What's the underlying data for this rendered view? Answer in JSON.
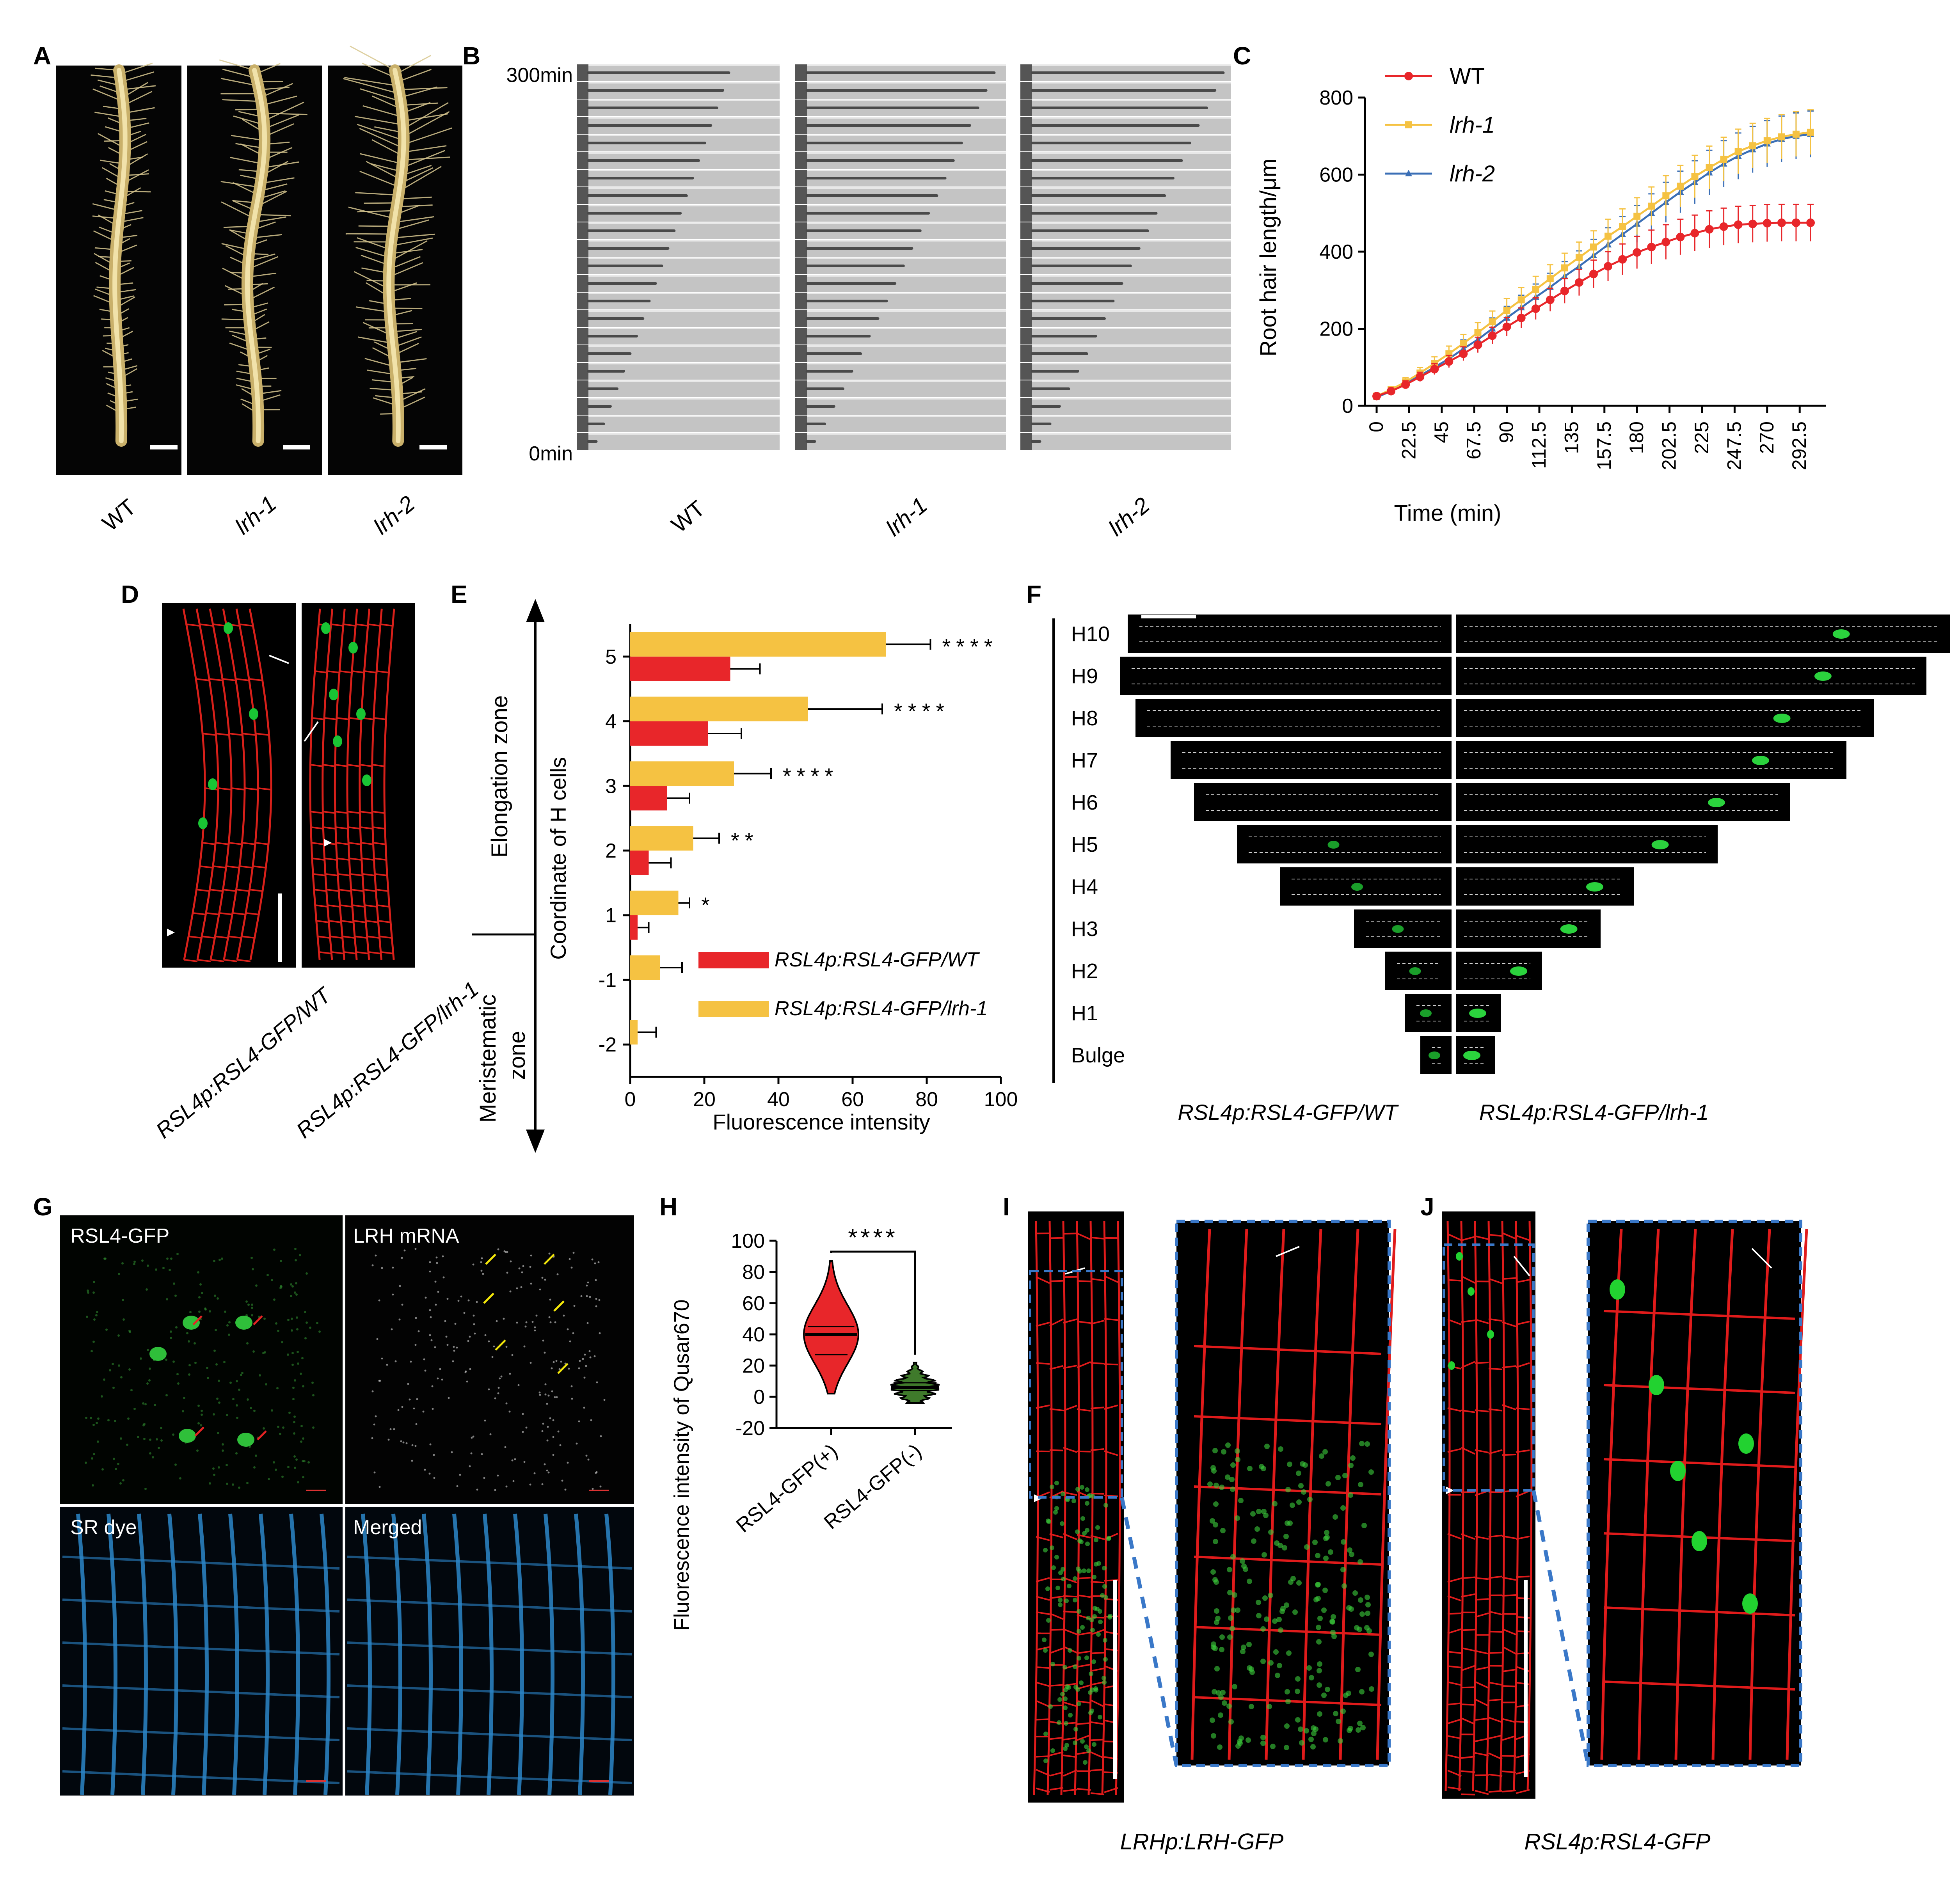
{
  "figure": {
    "panel_letters": [
      "A",
      "B",
      "C",
      "D",
      "E",
      "F",
      "G",
      "H",
      "I",
      "J"
    ]
  },
  "panel_a": {
    "genotypes": [
      "WT",
      "lrh-1",
      "lrh-2"
    ]
  },
  "panel_b": {
    "time_top": "300min",
    "time_bottom": "0min",
    "genotypes": [
      "WT",
      "lrh-1",
      "lrh-2"
    ]
  },
  "panel_d": {
    "labels": [
      "RSL4p:RSL4-GFP/WT",
      "RSL4p:RSL4-GFP/lrh-1"
    ]
  },
  "panel_e": {
    "zone_upper": "Elongation zone",
    "zone_lower": "Meristematic zone"
  },
  "panel_f": {
    "rows": [
      "H10",
      "H9",
      "H8",
      "H7",
      "H6",
      "H5",
      "H4",
      "H3",
      "H2",
      "H1",
      "Bulge"
    ],
    "labels": [
      "RSL4p:RSL4-GFP/WT",
      "RSL4p:RSL4-GFP/lrh-1"
    ]
  },
  "panel_g": {
    "quadrants": [
      "RSL4-GFP",
      "LRH mRNA",
      "SR dye",
      "Merged"
    ]
  },
  "panel_i": {
    "caption": "LRHp:LRH-GFP"
  },
  "panel_j": {
    "caption": "RSL4p:RSL4-GFP"
  },
  "chart_data": [
    {
      "panel": "C",
      "type": "line",
      "xlabel": "Time (min)",
      "ylabel": "Root hair length/μm",
      "ylim": [
        0,
        800
      ],
      "yticks": [
        0,
        200,
        400,
        600,
        800
      ],
      "xticks": [
        "0",
        "22.5",
        "45",
        "67.5",
        "90",
        "112.5",
        "135",
        "157.5",
        "180",
        "202.5",
        "225",
        "247.5",
        "270",
        "292.5"
      ],
      "x": [
        0,
        10,
        20,
        30,
        40,
        50,
        60,
        70,
        80,
        90,
        100,
        110,
        120,
        130,
        140,
        150,
        160,
        170,
        180,
        190,
        200,
        210,
        220,
        230,
        240,
        250,
        260,
        270,
        280,
        290,
        300
      ],
      "legend_position": "top-left",
      "series": [
        {
          "name": "WT",
          "color": "#e8262a",
          "marker": "circle",
          "values": [
            25,
            38,
            55,
            75,
            95,
            115,
            135,
            158,
            182,
            205,
            228,
            252,
            275,
            298,
            320,
            342,
            362,
            380,
            398,
            412,
            425,
            438,
            448,
            458,
            465,
            470,
            472,
            474,
            475,
            475,
            475
          ],
          "error": [
            5,
            8,
            10,
            12,
            14,
            16,
            18,
            20,
            22,
            24,
            26,
            28,
            30,
            32,
            34,
            36,
            38,
            40,
            42,
            44,
            45,
            46,
            47,
            48,
            48,
            48,
            48,
            48,
            48,
            48,
            48
          ]
        },
        {
          "name": "lrh-1",
          "color": "#f5c242",
          "marker": "square",
          "values": [
            25,
            42,
            62,
            85,
            110,
            135,
            162,
            190,
            218,
            248,
            275,
            302,
            330,
            358,
            385,
            412,
            440,
            465,
            492,
            518,
            545,
            570,
            595,
            618,
            640,
            660,
            675,
            688,
            698,
            705,
            710
          ],
          "error": [
            5,
            8,
            11,
            14,
            17,
            20,
            23,
            26,
            28,
            30,
            32,
            34,
            36,
            38,
            40,
            42,
            44,
            46,
            48,
            50,
            52,
            54,
            55,
            56,
            57,
            58,
            58,
            58,
            58,
            58,
            58
          ]
        },
        {
          "name": "lrh-2",
          "color": "#3b6fb6",
          "marker": "triangle",
          "values": [
            22,
            38,
            58,
            78,
            100,
            122,
            148,
            172,
            200,
            228,
            255,
            282,
            308,
            336,
            362,
            390,
            418,
            445,
            472,
            500,
            528,
            555,
            580,
            605,
            628,
            648,
            665,
            680,
            692,
            700,
            705
          ],
          "error": [
            5,
            8,
            11,
            14,
            17,
            20,
            23,
            26,
            28,
            30,
            32,
            34,
            36,
            38,
            40,
            42,
            44,
            46,
            48,
            50,
            52,
            54,
            56,
            58,
            60,
            60,
            60,
            60,
            60,
            60,
            60
          ]
        }
      ]
    },
    {
      "panel": "E",
      "type": "bar",
      "orientation": "horizontal",
      "xlabel": "Fluorescence intensity",
      "ylabel": "Coordinate of H cells",
      "xlim": [
        0,
        100
      ],
      "xticks": [
        0,
        20,
        40,
        60,
        80,
        100
      ],
      "categories": [
        "5",
        "4",
        "3",
        "2",
        "1",
        "-1",
        "-2"
      ],
      "significance": [
        "****",
        "****",
        "****",
        "**",
        "*",
        "",
        ""
      ],
      "legend_position": "bottom-right",
      "series": [
        {
          "name": "RSL4p:RSL4-GFP/lrh-1",
          "color": "#f5c242",
          "values": [
            69,
            48,
            28,
            17,
            13,
            8,
            2
          ],
          "error": [
            12,
            20,
            10,
            7,
            3,
            6,
            5
          ]
        },
        {
          "name": "RSL4p:RSL4-GFP/WT",
          "color": "#e8262a",
          "values": [
            27,
            21,
            10,
            5,
            2,
            0,
            0
          ],
          "error": [
            8,
            9,
            6,
            6,
            3,
            0,
            0
          ]
        }
      ]
    },
    {
      "panel": "H",
      "type": "violin",
      "ylabel": "Fluorescence intensity of Qusar670",
      "ylim": [
        -20,
        100
      ],
      "yticks": [
        -20,
        0,
        20,
        40,
        60,
        80,
        100
      ],
      "categories": [
        "RSL4-GFP(+)",
        "RSL4-GFP(-)"
      ],
      "significance": "****",
      "series": [
        {
          "name": "RSL4-GFP(+)",
          "color": "#e8262a",
          "min": 2,
          "max": 87,
          "q1": 27,
          "median": 40,
          "q3": 45
        },
        {
          "name": "RSL4-GFP(-)",
          "color": "#3f7a2b",
          "min": -4,
          "max": 22,
          "q1": 4,
          "median": 6,
          "q3": 9
        }
      ]
    }
  ]
}
